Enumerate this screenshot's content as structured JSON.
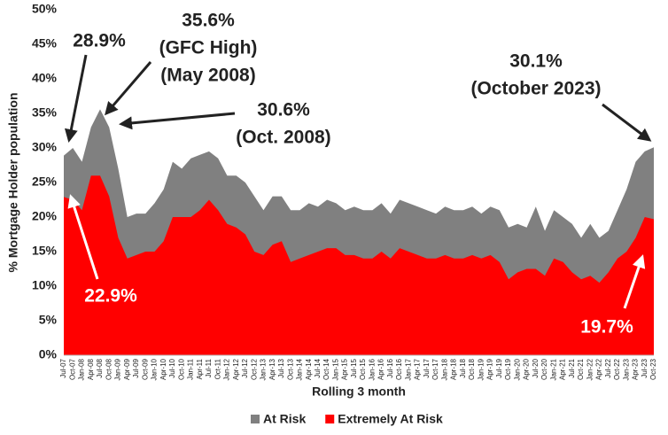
{
  "chart_data": {
    "type": "area",
    "y_axis_label": "% Mortgage Holder population",
    "x_axis_label": "Rolling 3 month",
    "categories": [
      "Jul-07",
      "Oct-07",
      "Jan-08",
      "Apr-08",
      "Jul-08",
      "Oct-08",
      "Jan-09",
      "Apr-09",
      "Jul-09",
      "Oct-09",
      "Jan-10",
      "Apr-10",
      "Jul-10",
      "Oct-10",
      "Jan-11",
      "Apr-11",
      "Jul-11",
      "Oct-11",
      "Jan-12",
      "Apr-12",
      "Jul-12",
      "Oct-12",
      "Jan-13",
      "Apr-13",
      "Jul-13",
      "Oct-13",
      "Jan-14",
      "Apr-14",
      "Jul-14",
      "Oct-14",
      "Jan-15",
      "Apr-15",
      "Jul-15",
      "Oct-15",
      "Jan-16",
      "Apr-16",
      "Jul-16",
      "Oct-16",
      "Jan-17",
      "Apr-17",
      "Jul-17",
      "Oct-17",
      "Jan-18",
      "Apr-18",
      "Jul-18",
      "Oct-18",
      "Jan-19",
      "Apr-19",
      "Jul-19",
      "Oct-19",
      "Jan-20",
      "Apr-20",
      "Jul-20",
      "Oct-20",
      "Jan-21",
      "Apr-21",
      "Jul-21",
      "Oct-21",
      "Jan-22",
      "Apr-22",
      "Jul-22",
      "Oct-22",
      "Jan-23",
      "Apr-23",
      "Jul-23",
      "Oct-23"
    ],
    "series": [
      {
        "name": "At Risk",
        "color": "#808080",
        "values": [
          28.9,
          30,
          28,
          33,
          35.6,
          33,
          27,
          20,
          20.5,
          20.5,
          22,
          24,
          28,
          27,
          28.5,
          29,
          29.5,
          28.5,
          26,
          26,
          25,
          23,
          21,
          23,
          23,
          21,
          21,
          22,
          21.5,
          22.5,
          22,
          21,
          21.5,
          21,
          21,
          22,
          20.5,
          22.5,
          22,
          21.5,
          21,
          20.5,
          21.5,
          21,
          21,
          21.5,
          20.5,
          21.5,
          21,
          18.5,
          19,
          18.5,
          21.5,
          18,
          21,
          20,
          19,
          17,
          19,
          17,
          18,
          21,
          24,
          28,
          29.5,
          30.1
        ]
      },
      {
        "name": "Extremely At Risk",
        "color": "#ff0000",
        "values": [
          22.9,
          22.5,
          21,
          26,
          26,
          23,
          17,
          14,
          14.5,
          15,
          15,
          16.5,
          20,
          20,
          20,
          21,
          22.5,
          21,
          19,
          18.5,
          17.5,
          15,
          14.5,
          16,
          16.5,
          13.5,
          14,
          14.5,
          15,
          15.5,
          15.5,
          14.5,
          14.5,
          14,
          14,
          15,
          14,
          15.5,
          15,
          14.5,
          14,
          14,
          14.5,
          14,
          14,
          14.5,
          14,
          14.5,
          13.5,
          11,
          12,
          12.5,
          12.5,
          11.5,
          14,
          13.5,
          12,
          11,
          11.5,
          10.5,
          12,
          14,
          15,
          17,
          20,
          19.7
        ]
      }
    ],
    "ylim": [
      0,
      50
    ],
    "yticks": [
      {
        "value": 0,
        "label": "0%"
      },
      {
        "value": 5,
        "label": "5%"
      },
      {
        "value": 10,
        "label": "10%"
      },
      {
        "value": 15,
        "label": "15%"
      },
      {
        "value": 20,
        "label": "20%"
      },
      {
        "value": 25,
        "label": "25%"
      },
      {
        "value": 30,
        "label": "30%"
      },
      {
        "value": 35,
        "label": "35%"
      },
      {
        "value": 40,
        "label": "40%"
      },
      {
        "value": 45,
        "label": "45%"
      },
      {
        "value": 50,
        "label": "50%"
      }
    ],
    "grid": false,
    "legend": "bottom",
    "annotations": [
      {
        "lines": [
          "28.9%"
        ],
        "color": "#222222"
      },
      {
        "lines": [
          "35.6%",
          "(GFC High)",
          "(May 2008)"
        ],
        "color": "#222222"
      },
      {
        "lines": [
          "30.6%",
          "(Oct. 2008)"
        ],
        "color": "#222222"
      },
      {
        "lines": [
          "30.1%",
          "(October 2023)"
        ],
        "color": "#222222"
      },
      {
        "lines": [
          "22.9%"
        ],
        "color": "#ffffff"
      },
      {
        "lines": [
          "19.7%"
        ],
        "color": "#ffffff"
      }
    ]
  }
}
